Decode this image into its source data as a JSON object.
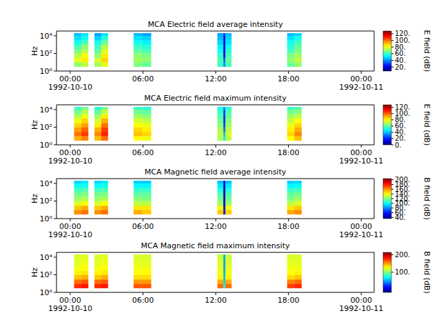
{
  "chart_data": [
    {
      "type": "heatmap",
      "title": "MCA  Electric field average intensity",
      "ylabel": "Hz",
      "colorbar_label": "E field (dB)",
      "log": "y",
      "xlim": [
        "1992-10-09T22:52",
        "1992-10-11T01:04"
      ],
      "xticks": [
        {
          "value": "1992-10-10T00:00",
          "label": "00:00\n1992-10-10"
        },
        {
          "value": "1992-10-10T06:00",
          "label": "06:00"
        },
        {
          "value": "1992-10-10T12:00",
          "label": "12:00"
        },
        {
          "value": "1992-10-10T18:00",
          "label": "18:00"
        },
        {
          "value": "1992-10-11T00:00",
          "label": "00:00\n1992-10-11"
        }
      ],
      "ylim": [
        1,
        35000
      ],
      "yticks": [
        {
          "value": 1,
          "label": "10⁰"
        },
        {
          "value": 100,
          "label": "10²"
        },
        {
          "value": 10000,
          "label": "10⁴"
        }
      ],
      "clim": [
        8,
        128
      ],
      "cticks": [
        {
          "value": 20,
          "label": "20."
        },
        {
          "value": 40,
          "label": "40."
        },
        {
          "value": 60,
          "label": "60."
        },
        {
          "value": 80,
          "label": "80."
        },
        {
          "value": 100,
          "label": "100."
        },
        {
          "value": 120,
          "label": "120."
        }
      ],
      "x_bins": [
        [
          "1992-10-10T00:20",
          "1992-10-10T00:55"
        ],
        [
          "1992-10-10T00:55",
          "1992-10-10T01:29"
        ],
        [
          "1992-10-10T02:00",
          "1992-10-10T02:34"
        ],
        [
          "1992-10-10T02:34",
          "1992-10-10T03:07"
        ],
        [
          "1992-10-10T05:14",
          "1992-10-10T05:57"
        ],
        [
          "1992-10-10T05:57",
          "1992-10-10T06:40"
        ],
        [
          "1992-10-10T12:09",
          "1992-10-10T12:38"
        ],
        [
          "1992-10-10T12:38",
          "1992-10-10T12:48"
        ],
        [
          "1992-10-10T12:48",
          "1992-10-10T13:18"
        ],
        [
          "1992-10-10T17:54",
          "1992-10-10T18:30"
        ],
        [
          "1992-10-10T18:30",
          "1992-10-10T19:05"
        ]
      ],
      "y_bins": [
        3,
        10,
        30,
        100,
        300,
        1000,
        3000,
        10000,
        20000
      ],
      "cells": [
        [
          70,
          75,
          72,
          80,
          68,
          65,
          60,
          40,
          62,
          65,
          70
        ],
        [
          80,
          85,
          78,
          88,
          72,
          70,
          62,
          35,
          65,
          70,
          75
        ],
        [
          75,
          82,
          70,
          85,
          70,
          68,
          60,
          25,
          62,
          68,
          72
        ],
        [
          68,
          75,
          65,
          80,
          65,
          62,
          55,
          20,
          58,
          62,
          68
        ],
        [
          62,
          70,
          60,
          75,
          60,
          58,
          52,
          18,
          55,
          58,
          65
        ],
        [
          55,
          62,
          55,
          65,
          55,
          52,
          48,
          18,
          50,
          55,
          60
        ],
        [
          50,
          55,
          48,
          58,
          50,
          48,
          45,
          20,
          48,
          50,
          55
        ],
        [
          45,
          50,
          42,
          50,
          45,
          42,
          42,
          30,
          45,
          45,
          48
        ]
      ]
    },
    {
      "type": "heatmap",
      "title": "MCA  Electric field maximum intensity",
      "ylabel": "Hz",
      "colorbar_label": "E field (dB)",
      "log": "y",
      "xlim": [
        "1992-10-09T22:52",
        "1992-10-11T01:04"
      ],
      "xticks": [
        {
          "value": "1992-10-10T00:00",
          "label": "00:00\n1992-10-10"
        },
        {
          "value": "1992-10-10T06:00",
          "label": "06:00"
        },
        {
          "value": "1992-10-10T12:00",
          "label": "12:00"
        },
        {
          "value": "1992-10-10T18:00",
          "label": "18:00"
        },
        {
          "value": "1992-10-11T00:00",
          "label": "00:00\n1992-10-11"
        }
      ],
      "ylim": [
        1,
        35000
      ],
      "yticks": [
        {
          "value": 1,
          "label": "10⁰"
        },
        {
          "value": 100,
          "label": "10²"
        },
        {
          "value": 10000,
          "label": "10⁴"
        }
      ],
      "clim": [
        0,
        128
      ],
      "cticks": [
        {
          "value": 0,
          "label": "0."
        },
        {
          "value": 20,
          "label": "20."
        },
        {
          "value": 40,
          "label": "40."
        },
        {
          "value": 60,
          "label": "60."
        },
        {
          "value": 80,
          "label": "80."
        },
        {
          "value": 100,
          "label": "100."
        },
        {
          "value": 120,
          "label": "120."
        }
      ],
      "x_bins": [
        [
          "1992-10-10T00:20",
          "1992-10-10T00:55"
        ],
        [
          "1992-10-10T00:55",
          "1992-10-10T01:29"
        ],
        [
          "1992-10-10T02:00",
          "1992-10-10T02:34"
        ],
        [
          "1992-10-10T02:34",
          "1992-10-10T03:07"
        ],
        [
          "1992-10-10T05:14",
          "1992-10-10T05:57"
        ],
        [
          "1992-10-10T05:57",
          "1992-10-10T06:40"
        ],
        [
          "1992-10-10T12:09",
          "1992-10-10T12:38"
        ],
        [
          "1992-10-10T12:38",
          "1992-10-10T12:48"
        ],
        [
          "1992-10-10T12:48",
          "1992-10-10T13:18"
        ],
        [
          "1992-10-10T17:54",
          "1992-10-10T18:30"
        ],
        [
          "1992-10-10T18:30",
          "1992-10-10T19:05"
        ]
      ],
      "y_bins": [
        3,
        10,
        30,
        100,
        300,
        1000,
        3000,
        10000,
        20000
      ],
      "cells": [
        [
          90,
          95,
          88,
          98,
          80,
          78,
          70,
          45,
          72,
          80,
          88
        ],
        [
          98,
          105,
          95,
          108,
          88,
          85,
          72,
          40,
          75,
          85,
          95
        ],
        [
          92,
          100,
          90,
          105,
          85,
          82,
          70,
          30,
          72,
          82,
          90
        ],
        [
          85,
          92,
          82,
          98,
          80,
          78,
          65,
          25,
          68,
          78,
          85
        ],
        [
          78,
          85,
          75,
          90,
          75,
          72,
          62,
          22,
          65,
          72,
          80
        ],
        [
          70,
          78,
          68,
          82,
          68,
          65,
          58,
          22,
          60,
          68,
          72
        ],
        [
          62,
          70,
          60,
          72,
          62,
          60,
          55,
          25,
          58,
          62,
          65
        ],
        [
          55,
          62,
          52,
          62,
          55,
          52,
          50,
          35,
          52,
          55,
          58
        ]
      ]
    },
    {
      "type": "heatmap",
      "title": "MCA  Magnetic field average intensity",
      "ylabel": "Hz",
      "colorbar_label": "B field (dB)",
      "log": "y",
      "xlim": [
        "1992-10-09T22:52",
        "1992-10-11T01:04"
      ],
      "xticks": [
        {
          "value": "1992-10-10T00:00",
          "label": "00:00\n1992-10-10"
        },
        {
          "value": "1992-10-10T06:00",
          "label": "06:00"
        },
        {
          "value": "1992-10-10T12:00",
          "label": "12:00"
        },
        {
          "value": "1992-10-10T18:00",
          "label": "18:00"
        },
        {
          "value": "1992-10-11T00:00",
          "label": "00:00\n1992-10-11"
        }
      ],
      "ylim": [
        1,
        35000
      ],
      "yticks": [
        {
          "value": 1,
          "label": "10⁰"
        },
        {
          "value": 100,
          "label": "10²"
        },
        {
          "value": 10000,
          "label": "10⁴"
        }
      ],
      "clim": [
        35,
        205
      ],
      "cticks": [
        {
          "value": 40,
          "label": "40."
        },
        {
          "value": 60,
          "label": "60."
        },
        {
          "value": 80,
          "label": "80."
        },
        {
          "value": 100,
          "label": "100."
        },
        {
          "value": 120,
          "label": "120."
        },
        {
          "value": 140,
          "label": "140."
        },
        {
          "value": 160,
          "label": "160."
        },
        {
          "value": 180,
          "label": "180."
        },
        {
          "value": 200,
          "label": "200."
        }
      ],
      "x_bins": [
        [
          "1992-10-10T00:20",
          "1992-10-10T00:55"
        ],
        [
          "1992-10-10T00:55",
          "1992-10-10T01:29"
        ],
        [
          "1992-10-10T02:00",
          "1992-10-10T02:34"
        ],
        [
          "1992-10-10T02:34",
          "1992-10-10T03:07"
        ],
        [
          "1992-10-10T05:14",
          "1992-10-10T05:57"
        ],
        [
          "1992-10-10T05:57",
          "1992-10-10T06:40"
        ],
        [
          "1992-10-10T12:09",
          "1992-10-10T12:38"
        ],
        [
          "1992-10-10T12:38",
          "1992-10-10T12:48"
        ],
        [
          "1992-10-10T12:48",
          "1992-10-10T13:18"
        ],
        [
          "1992-10-10T17:54",
          "1992-10-10T18:30"
        ],
        [
          "1992-10-10T18:30",
          "1992-10-10T19:05"
        ]
      ],
      "y_bins": [
        3,
        10,
        30,
        100,
        300,
        1000,
        3000,
        10000,
        20000
      ],
      "cells": [
        [
          160,
          165,
          160,
          165,
          155,
          150,
          150,
          60,
          150,
          155,
          160
        ],
        [
          150,
          155,
          150,
          155,
          145,
          145,
          140,
          55,
          140,
          145,
          150
        ],
        [
          135,
          140,
          135,
          140,
          130,
          130,
          125,
          50,
          125,
          130,
          135
        ],
        [
          125,
          128,
          125,
          128,
          122,
          120,
          118,
          48,
          118,
          120,
          125
        ],
        [
          118,
          120,
          118,
          120,
          115,
          115,
          112,
          45,
          112,
          115,
          118
        ],
        [
          110,
          112,
          110,
          112,
          108,
          108,
          105,
          45,
          105,
          108,
          110
        ],
        [
          100,
          102,
          100,
          102,
          98,
          98,
          95,
          45,
          95,
          98,
          100
        ],
        [
          92,
          95,
          92,
          95,
          90,
          90,
          88,
          50,
          88,
          90,
          92
        ]
      ]
    },
    {
      "type": "heatmap",
      "title": "MCA  Magnetic field maximum intensity",
      "ylabel": "Hz",
      "colorbar_label": "B field (dB)",
      "log": "y",
      "xlim": [
        "1992-10-09T22:52",
        "1992-10-11T01:04"
      ],
      "xticks": [
        {
          "value": "1992-10-10T00:00",
          "label": "00:00\n1992-10-10"
        },
        {
          "value": "1992-10-10T06:00",
          "label": "06:00"
        },
        {
          "value": "1992-10-10T12:00",
          "label": "12:00"
        },
        {
          "value": "1992-10-10T18:00",
          "label": "18:00"
        },
        {
          "value": "1992-10-11T00:00",
          "label": "00:00\n1992-10-11"
        }
      ],
      "ylim": [
        1,
        35000
      ],
      "yticks": [
        {
          "value": 1,
          "label": "10⁰"
        },
        {
          "value": 100,
          "label": "10²"
        },
        {
          "value": 10000,
          "label": "10⁴"
        }
      ],
      "clim": [
        -15,
        213
      ],
      "cticks": [
        {
          "value": 100,
          "label": "100."
        },
        {
          "value": 200,
          "label": "200."
        }
      ],
      "x_bins": [
        [
          "1992-10-10T00:20",
          "1992-10-10T00:55"
        ],
        [
          "1992-10-10T00:55",
          "1992-10-10T01:29"
        ],
        [
          "1992-10-10T02:00",
          "1992-10-10T02:34"
        ],
        [
          "1992-10-10T02:34",
          "1992-10-10T03:07"
        ],
        [
          "1992-10-10T05:14",
          "1992-10-10T05:57"
        ],
        [
          "1992-10-10T05:57",
          "1992-10-10T06:40"
        ],
        [
          "1992-10-10T12:09",
          "1992-10-10T12:38"
        ],
        [
          "1992-10-10T12:38",
          "1992-10-10T12:48"
        ],
        [
          "1992-10-10T12:48",
          "1992-10-10T13:18"
        ],
        [
          "1992-10-10T17:54",
          "1992-10-10T18:30"
        ],
        [
          "1992-10-10T18:30",
          "1992-10-10T19:05"
        ]
      ],
      "y_bins": [
        3,
        10,
        30,
        100,
        300,
        1000,
        3000,
        10000,
        20000
      ],
      "cells": [
        [
          175,
          180,
          175,
          180,
          165,
          165,
          160,
          70,
          160,
          170,
          175
        ],
        [
          160,
          165,
          160,
          165,
          150,
          150,
          145,
          60,
          145,
          155,
          160
        ],
        [
          140,
          145,
          140,
          145,
          135,
          135,
          130,
          55,
          130,
          135,
          140
        ],
        [
          130,
          132,
          130,
          132,
          128,
          128,
          125,
          52,
          125,
          128,
          130
        ],
        [
          125,
          128,
          125,
          128,
          125,
          125,
          122,
          50,
          122,
          125,
          125
        ],
        [
          122,
          125,
          122,
          125,
          122,
          122,
          120,
          50,
          120,
          122,
          122
        ],
        [
          120,
          122,
          120,
          122,
          120,
          120,
          118,
          50,
          118,
          120,
          120
        ],
        [
          118,
          120,
          118,
          120,
          118,
          118,
          115,
          55,
          115,
          118,
          118
        ]
      ]
    }
  ]
}
